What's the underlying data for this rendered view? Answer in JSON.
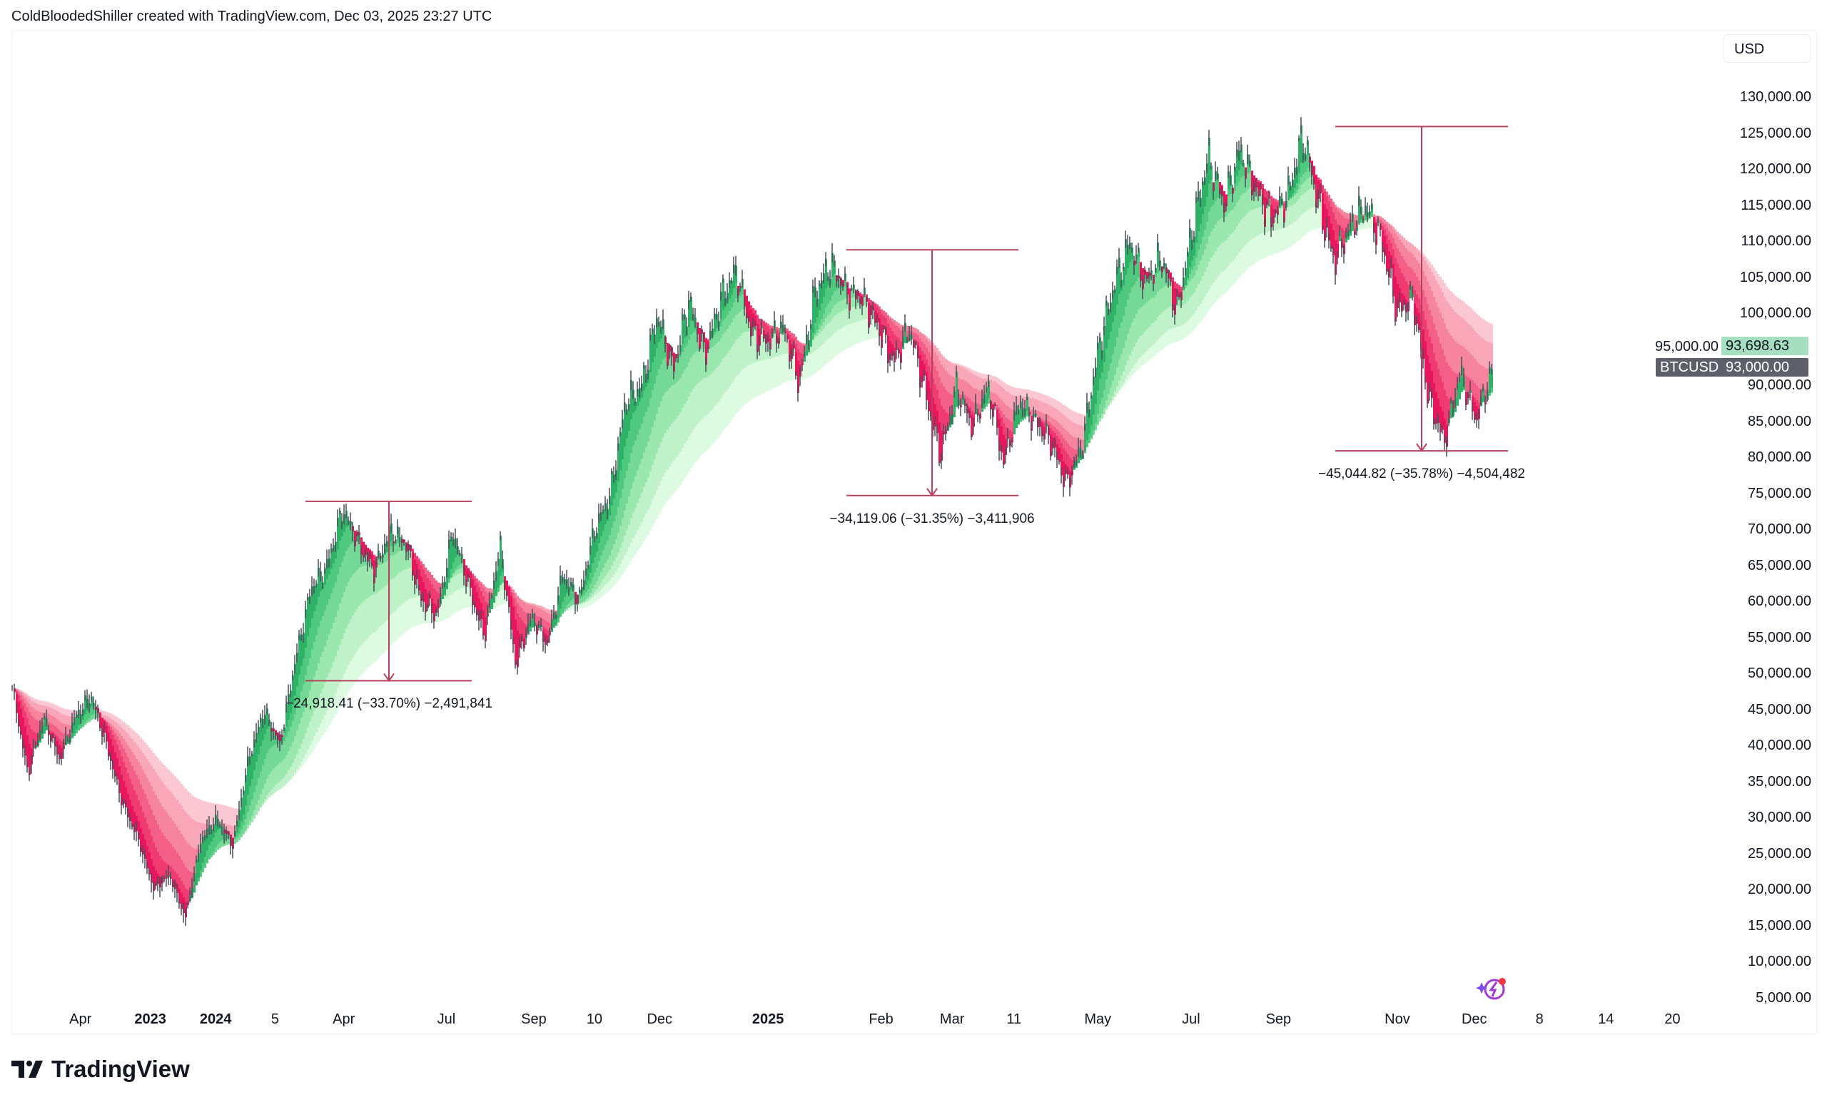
{
  "header": {
    "attribution": "ColdBloodedShiller created with TradingView.com, Dec 03, 2025 23:27 UTC"
  },
  "currency_button": "USD",
  "symbol_label": "BTCUSD",
  "last_price_label": "93,000.00",
  "secondary_price_label": "93,698.63",
  "brand": "TradingView",
  "colors": {
    "bull": "#4cc97a",
    "bear": "#f0386b",
    "measure": "#b8405e",
    "last_price_bg": "#5d606b",
    "secondary_price_bg": "#a6dfbf"
  },
  "icons": {
    "assistant": "sparkle-lightning-icon",
    "logo": "tradingview-logo-icon"
  },
  "chart_data": {
    "type": "candlestick",
    "symbol": "BTCUSD",
    "overlay": "moving average ribbon (green above / pink below)",
    "y_axis": {
      "ticks": [
        "130,000.00",
        "125,000.00",
        "120,000.00",
        "115,000.00",
        "110,000.00",
        "105,000.00",
        "100,000.00",
        "95,000.00",
        "90,000.00",
        "85,000.00",
        "80,000.00",
        "75,000.00",
        "70,000.00",
        "65,000.00",
        "60,000.00",
        "55,000.00",
        "50,000.00",
        "45,000.00",
        "40,000.00",
        "35,000.00",
        "30,000.00",
        "25,000.00",
        "20,000.00",
        "15,000.00",
        "10,000.00",
        "5,000.00"
      ],
      "range": [
        5000,
        130000
      ]
    },
    "x_axis": {
      "ticks": [
        {
          "label": "Apr",
          "bold": false
        },
        {
          "label": "2023",
          "bold": true
        },
        {
          "label": "2024",
          "bold": true
        },
        {
          "label": "5",
          "bold": false
        },
        {
          "label": "Apr",
          "bold": false
        },
        {
          "label": "Jul",
          "bold": false
        },
        {
          "label": "Sep",
          "bold": false
        },
        {
          "label": "10",
          "bold": false
        },
        {
          "label": "Dec",
          "bold": false
        },
        {
          "label": "2025",
          "bold": true
        },
        {
          "label": "Feb",
          "bold": false
        },
        {
          "label": "Mar",
          "bold": false
        },
        {
          "label": "11",
          "bold": false
        },
        {
          "label": "May",
          "bold": false
        },
        {
          "label": "Jul",
          "bold": false
        },
        {
          "label": "Sep",
          "bold": false
        },
        {
          "label": "Nov",
          "bold": false
        },
        {
          "label": "Dec",
          "bold": false
        },
        {
          "label": "8",
          "bold": false
        },
        {
          "label": "14",
          "bold": false
        },
        {
          "label": "20",
          "bold": false
        }
      ]
    },
    "close_approx": [
      48000,
      36000,
      44000,
      38000,
      44000,
      47000,
      40000,
      32000,
      27000,
      20000,
      22000,
      16000,
      27000,
      30000,
      26000,
      38000,
      45000,
      40000,
      52000,
      62000,
      65000,
      73000,
      68000,
      64000,
      70000,
      68000,
      60000,
      58000,
      70000,
      62000,
      55000,
      68000,
      51000,
      58000,
      54000,
      64000,
      60000,
      70000,
      75000,
      88000,
      90000,
      100000,
      92000,
      102000,
      94000,
      102000,
      106000,
      97000,
      96000,
      98000,
      90000,
      103000,
      107000,
      103000,
      102000,
      98000,
      93000,
      98000,
      89000,
      80000,
      90000,
      84000,
      90000,
      79000,
      88000,
      85000,
      82000,
      76000,
      82000,
      95000,
      104000,
      110000,
      104000,
      108000,
      100000,
      112000,
      122000,
      115000,
      123000,
      117000,
      113000,
      116000,
      125000,
      115000,
      107000,
      112000,
      115000,
      110000,
      100000,
      102000,
      88000,
      82000,
      92000,
      85000,
      92000
    ],
    "measurements": [
      {
        "label": "−24,918.41 (−33.70%) −2,491,841",
        "from": 73900,
        "to": 49000
      },
      {
        "label": "−34,119.06 (−31.35%) −3,411,906",
        "from": 108800,
        "to": 74700
      },
      {
        "label": "−45,044.82 (−35.78%) −4,504,482",
        "from": 125900,
        "to": 80900
      }
    ]
  }
}
